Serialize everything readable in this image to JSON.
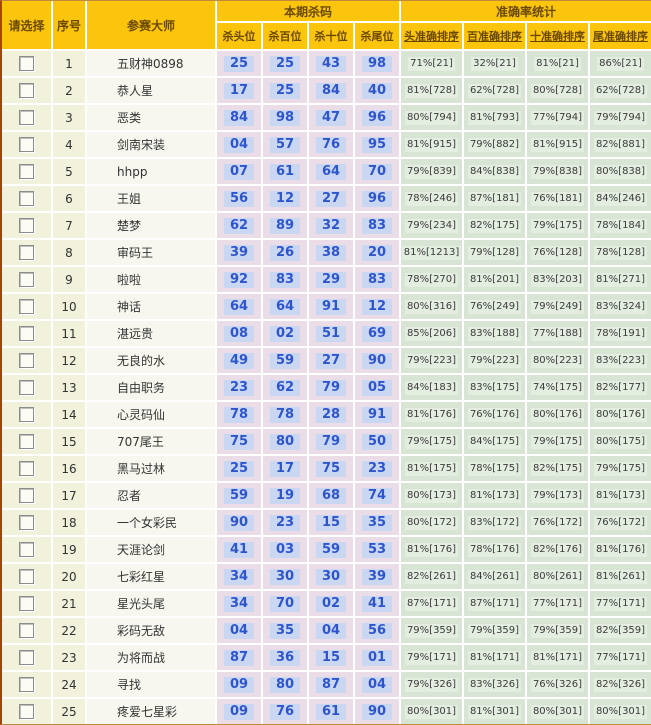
{
  "table": {
    "select_header": "请选择",
    "index_header": "序号",
    "master_header": "参赛大师",
    "group1_header": "本期杀码",
    "group2_header": "准确率统计",
    "kill_subheaders": [
      "杀头位",
      "杀百位",
      "杀十位",
      "杀尾位"
    ],
    "rank_subheaders": [
      "头准确排序",
      "百准确排序",
      "十准确排序",
      "尾准确排序"
    ],
    "rows": [
      {
        "index": "1",
        "name": "五财神0898",
        "kills": [
          "25",
          "25",
          "43",
          "98"
        ],
        "stats": [
          "71%[21]",
          "32%[21]",
          "81%[21]",
          "86%[21]"
        ]
      },
      {
        "index": "2",
        "name": "恭人星",
        "kills": [
          "17",
          "25",
          "84",
          "40"
        ],
        "stats": [
          "81%[728]",
          "62%[728]",
          "80%[728]",
          "62%[728]"
        ]
      },
      {
        "index": "3",
        "name": "恶类",
        "kills": [
          "84",
          "98",
          "47",
          "96"
        ],
        "stats": [
          "80%[794]",
          "81%[793]",
          "77%[794]",
          "79%[794]"
        ]
      },
      {
        "index": "4",
        "name": "剑南宋装",
        "kills": [
          "04",
          "57",
          "76",
          "95"
        ],
        "stats": [
          "81%[915]",
          "79%[882]",
          "81%[915]",
          "82%[881]"
        ]
      },
      {
        "index": "5",
        "name": "hhpp",
        "kills": [
          "07",
          "61",
          "64",
          "70"
        ],
        "stats": [
          "79%[839]",
          "84%[838]",
          "79%[838]",
          "80%[838]"
        ]
      },
      {
        "index": "6",
        "name": "王姐",
        "kills": [
          "56",
          "12",
          "27",
          "96"
        ],
        "stats": [
          "78%[246]",
          "87%[181]",
          "76%[181]",
          "84%[246]"
        ]
      },
      {
        "index": "7",
        "name": "楚梦",
        "kills": [
          "62",
          "89",
          "32",
          "83"
        ],
        "stats": [
          "79%[234]",
          "82%[175]",
          "79%[175]",
          "78%[184]"
        ]
      },
      {
        "index": "8",
        "name": "审码王",
        "kills": [
          "39",
          "26",
          "38",
          "20"
        ],
        "stats": [
          "81%[1213]",
          "79%[128]",
          "76%[128]",
          "78%[128]"
        ]
      },
      {
        "index": "9",
        "name": "啦啦",
        "kills": [
          "92",
          "83",
          "29",
          "83"
        ],
        "stats": [
          "78%[270]",
          "81%[201]",
          "83%[203]",
          "81%[271]"
        ]
      },
      {
        "index": "10",
        "name": "神话",
        "kills": [
          "64",
          "64",
          "91",
          "12"
        ],
        "stats": [
          "80%[316]",
          "76%[249]",
          "79%[249]",
          "83%[324]"
        ]
      },
      {
        "index": "11",
        "name": "湛远贵",
        "kills": [
          "08",
          "02",
          "51",
          "69"
        ],
        "stats": [
          "85%[206]",
          "83%[188]",
          "77%[188]",
          "78%[191]"
        ]
      },
      {
        "index": "12",
        "name": "无良的水",
        "kills": [
          "49",
          "59",
          "27",
          "90"
        ],
        "stats": [
          "79%[223]",
          "79%[223]",
          "80%[223]",
          "83%[223]"
        ]
      },
      {
        "index": "13",
        "name": "自由职务",
        "kills": [
          "23",
          "62",
          "79",
          "05"
        ],
        "stats": [
          "84%[183]",
          "83%[175]",
          "74%[175]",
          "82%[177]"
        ]
      },
      {
        "index": "14",
        "name": "心灵码仙",
        "kills": [
          "78",
          "78",
          "28",
          "91"
        ],
        "stats": [
          "81%[176]",
          "76%[176]",
          "80%[176]",
          "80%[176]"
        ]
      },
      {
        "index": "15",
        "name": "707尾王",
        "kills": [
          "75",
          "80",
          "79",
          "50"
        ],
        "stats": [
          "79%[175]",
          "84%[175]",
          "79%[175]",
          "80%[175]"
        ]
      },
      {
        "index": "16",
        "name": "黑马过林",
        "kills": [
          "25",
          "17",
          "75",
          "23"
        ],
        "stats": [
          "81%[175]",
          "78%[175]",
          "82%[175]",
          "79%[175]"
        ]
      },
      {
        "index": "17",
        "name": "忍者",
        "kills": [
          "59",
          "19",
          "68",
          "74"
        ],
        "stats": [
          "80%[173]",
          "81%[173]",
          "79%[173]",
          "81%[173]"
        ]
      },
      {
        "index": "18",
        "name": "一个女彩民",
        "kills": [
          "90",
          "23",
          "15",
          "35"
        ],
        "stats": [
          "80%[172]",
          "83%[172]",
          "76%[172]",
          "76%[172]"
        ]
      },
      {
        "index": "19",
        "name": "天涯论剑",
        "kills": [
          "41",
          "03",
          "59",
          "53"
        ],
        "stats": [
          "81%[176]",
          "78%[176]",
          "82%[176]",
          "81%[176]"
        ]
      },
      {
        "index": "20",
        "name": "七彩红星",
        "kills": [
          "34",
          "30",
          "30",
          "39"
        ],
        "stats": [
          "82%[261]",
          "84%[261]",
          "80%[261]",
          "81%[261]"
        ]
      },
      {
        "index": "21",
        "name": "星光头尾",
        "kills": [
          "34",
          "70",
          "02",
          "41"
        ],
        "stats": [
          "87%[171]",
          "87%[171]",
          "77%[171]",
          "77%[171]"
        ]
      },
      {
        "index": "22",
        "name": "彩码无敌",
        "kills": [
          "04",
          "35",
          "04",
          "56"
        ],
        "stats": [
          "79%[359]",
          "79%[359]",
          "79%[359]",
          "82%[359]"
        ]
      },
      {
        "index": "23",
        "name": "为将而战",
        "kills": [
          "87",
          "36",
          "15",
          "01"
        ],
        "stats": [
          "79%[171]",
          "81%[171]",
          "81%[171]",
          "77%[171]"
        ]
      },
      {
        "index": "24",
        "name": "寻找",
        "kills": [
          "09",
          "80",
          "87",
          "04"
        ],
        "stats": [
          "79%[326]",
          "83%[326]",
          "76%[326]",
          "82%[326]"
        ]
      },
      {
        "index": "25",
        "name": "疼爱七星彩",
        "kills": [
          "09",
          "76",
          "61",
          "90"
        ],
        "stats": [
          "80%[301]",
          "81%[301]",
          "80%[301]",
          "80%[301]"
        ]
      }
    ]
  },
  "colors": {
    "header_bg": "#fbc40d",
    "header_text": "#6b4a00",
    "select_col_bg": "#f1f1dc",
    "name_col_bg": "#f7f7ef",
    "kill_cell_bg": "#ebdde8",
    "kill_num_highlight": "#c9d7f3",
    "kill_num_text": "#2f55cd",
    "stat_cell_bg": "#d8e4d4",
    "stat_highlight": "#e3ede0",
    "grid_line": "#ffffff"
  }
}
